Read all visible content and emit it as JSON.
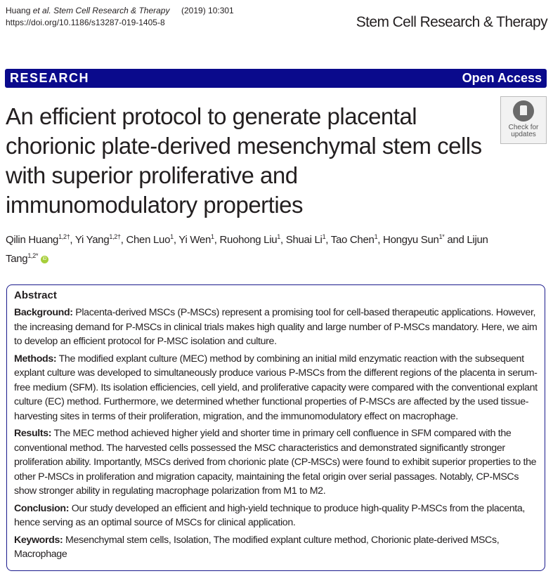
{
  "header": {
    "citation_author": "Huang",
    "citation_etal": "et al.",
    "citation_journal": "Stem Cell Research & Therapy",
    "citation_year": "(2019) 10:301",
    "doi": "https://doi.org/10.1186/s13287-019-1405-8",
    "journal_logo": "Stem Cell Research & Therapy"
  },
  "band": {
    "type": "RESEARCH",
    "access": "Open Access"
  },
  "title": "An efficient protocol to generate placental chorionic plate-derived mesenchymal stem cells with superior proliferative and immunomodulatory properties",
  "check_updates": {
    "label": "Check for updates",
    "icon": "check-for-updates-icon"
  },
  "authors": [
    {
      "name": "Qilin Huang",
      "aff": "1,2†",
      "sep": ", "
    },
    {
      "name": "Yi Yang",
      "aff": "1,2†",
      "sep": ", "
    },
    {
      "name": "Chen Luo",
      "aff": "1",
      "sep": ", "
    },
    {
      "name": "Yi Wen",
      "aff": "1",
      "sep": ", "
    },
    {
      "name": "Ruohong Liu",
      "aff": "1",
      "sep": ", "
    },
    {
      "name": "Shuai Li",
      "aff": "1",
      "sep": ", "
    },
    {
      "name": "Tao Chen",
      "aff": "1",
      "sep": ", "
    },
    {
      "name": "Hongyu Sun",
      "aff": "1*",
      "sep": " and "
    },
    {
      "name": "Lijun Tang",
      "aff": "1,2*",
      "sep": ""
    }
  ],
  "orcid_label": "iD",
  "abstract": {
    "heading": "Abstract",
    "sections": [
      {
        "label": "Background:",
        "text": " Placenta-derived MSCs (P-MSCs) represent a promising tool for cell-based therapeutic applications. However, the increasing demand for P-MSCs in clinical trials makes high quality and large number of P-MSCs mandatory. Here, we aim to develop an efficient protocol for P-MSC isolation and culture."
      },
      {
        "label": "Methods:",
        "text": " The modified explant culture (MEC) method by combining an initial mild enzymatic reaction with the subsequent explant culture was developed to simultaneously produce various P-MSCs from the different regions of the placenta in serum-free medium (SFM). Its isolation efficiencies, cell yield, and proliferative capacity were compared with the conventional explant culture (EC) method. Furthermore, we determined whether functional properties of P-MSCs are affected by the used tissue-harvesting sites in terms of their proliferation, migration, and the immunomodulatory effect on macrophage."
      },
      {
        "label": "Results:",
        "text": " The MEC method achieved higher yield and shorter time in primary cell confluence in SFM compared with the conventional method. The harvested cells possessed the MSC characteristics and demonstrated significantly stronger proliferation ability. Importantly, MSCs derived from chorionic plate (CP-MSCs) were found to exhibit superior properties to the other P-MSCs in proliferation and migration capacity, maintaining the fetal origin over serial passages. Notably, CP-MSCs show stronger ability in regulating macrophage polarization from M1 to M2."
      },
      {
        "label": "Conclusion:",
        "text": " Our study developed an efficient and high-yield technique to produce high-quality P-MSCs from the placenta, hence serving as an optimal source of MSCs for clinical application."
      },
      {
        "label": "Keywords:",
        "text": " Mesenchymal stem cells, Isolation, The modified explant culture method, Chorionic plate-derived MSCs, Macrophage"
      }
    ]
  }
}
